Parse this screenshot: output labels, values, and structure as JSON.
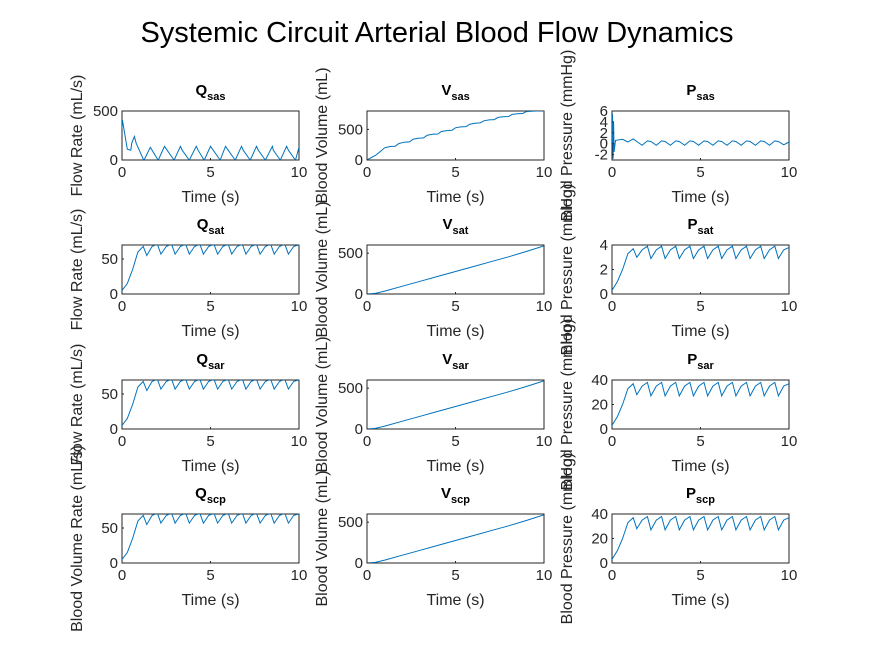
{
  "figure": {
    "title": "Systemic Circuit Arterial Blood Flow Dynamics",
    "line_color": "#0072BD",
    "background": "#ffffff"
  },
  "chart_data": [
    {
      "id": "Q_sas",
      "type": "line",
      "title_main": "Q",
      "title_sub": "sas",
      "xlabel": "Time (s)",
      "ylabel": "Flow Rate (mL/s)",
      "xlim": [
        0,
        10
      ],
      "ylim": [
        0,
        500
      ],
      "xticks": [
        0,
        5,
        10
      ],
      "yticks": [
        0,
        500
      ],
      "grid": false,
      "series": [
        {
          "x": [
            0,
            0.02,
            0.3,
            0.5,
            0.55,
            0.7,
            0.8,
            1.2,
            1.25,
            1.6,
            1.7,
            2.0,
            2.05,
            2.4,
            2.55,
            2.9,
            2.95,
            3.3,
            3.4,
            3.75,
            3.8,
            4.2,
            4.3,
            4.6,
            4.65,
            5.0,
            5.15,
            5.5,
            5.55,
            5.85,
            6.0,
            6.35,
            6.4,
            6.75,
            6.85,
            7.2,
            7.25,
            7.6,
            7.7,
            8.05,
            8.1,
            8.5,
            8.55,
            8.9,
            8.95,
            9.3,
            9.4,
            9.75,
            9.8,
            10
          ],
          "y": [
            320,
            410,
            110,
            100,
            170,
            240,
            170,
            10,
            0,
            130,
            100,
            10,
            0,
            140,
            100,
            10,
            0,
            140,
            100,
            10,
            0,
            140,
            100,
            10,
            0,
            140,
            100,
            10,
            0,
            140,
            100,
            10,
            0,
            140,
            100,
            10,
            0,
            140,
            100,
            10,
            0,
            140,
            100,
            10,
            0,
            140,
            100,
            10,
            0,
            130
          ]
        }
      ]
    },
    {
      "id": "V_sas",
      "type": "line",
      "title_main": "V",
      "title_sub": "sas",
      "xlabel": "Time (s)",
      "ylabel": "Blood Volume (mL)",
      "xlim": [
        0,
        10
      ],
      "ylim": [
        0,
        800
      ],
      "xticks": [
        0,
        5,
        10
      ],
      "yticks": [
        0,
        500
      ],
      "grid": false,
      "series": [
        {
          "x": [
            0,
            0.5,
            0.8,
            1.0,
            1.3,
            1.6,
            1.8,
            2.1,
            2.4,
            2.6,
            2.9,
            3.2,
            3.4,
            3.7,
            4.0,
            4.2,
            4.5,
            4.8,
            5.0,
            5.3,
            5.6,
            5.8,
            6.1,
            6.4,
            6.6,
            6.9,
            7.2,
            7.4,
            7.7,
            8.0,
            8.2,
            8.5,
            8.8,
            9.0,
            9.3,
            9.6,
            9.8,
            10
          ],
          "y": [
            0,
            80,
            150,
            200,
            220,
            225,
            270,
            290,
            295,
            340,
            355,
            360,
            405,
            420,
            425,
            465,
            480,
            485,
            525,
            540,
            545,
            585,
            600,
            605,
            640,
            655,
            660,
            695,
            705,
            710,
            745,
            755,
            760,
            790,
            795,
            800,
            805,
            800
          ]
        }
      ]
    },
    {
      "id": "P_sas",
      "type": "line",
      "title_main": "P",
      "title_sub": "sas",
      "xlabel": "Time (s)",
      "ylabel": "Blood Pressure (mmHg)",
      "xlim": [
        0,
        10
      ],
      "ylim": [
        -3,
        6
      ],
      "xticks": [
        0,
        5,
        10
      ],
      "yticks": [
        -2,
        0,
        2,
        4,
        6
      ],
      "grid": false,
      "series": [
        {
          "x": [
            0,
            0.03,
            0.06,
            0.09,
            0.12,
            0.2,
            0.6,
            0.9,
            1.2,
            1.4,
            1.7,
            2.0,
            2.2,
            2.5,
            2.8,
            3.0,
            3.3,
            3.6,
            3.8,
            4.1,
            4.4,
            4.6,
            4.9,
            5.2,
            5.4,
            5.7,
            6.0,
            6.2,
            6.5,
            6.8,
            7.0,
            7.3,
            7.6,
            7.8,
            8.1,
            8.4,
            8.6,
            8.9,
            9.2,
            9.4,
            9.7,
            10
          ],
          "y": [
            0,
            5.5,
            -2.8,
            4.0,
            -1.5,
            0.6,
            0.8,
            0.3,
            0.9,
            0.4,
            -0.3,
            0.5,
            0.4,
            -0.3,
            0.5,
            0.4,
            -0.3,
            0.5,
            0.4,
            -0.3,
            0.5,
            0.4,
            -0.3,
            0.5,
            0.4,
            -0.3,
            0.5,
            0.4,
            -0.3,
            0.5,
            0.4,
            -0.3,
            0.5,
            0.4,
            -0.3,
            0.5,
            0.4,
            -0.3,
            0.5,
            0.4,
            -0.2,
            0.3
          ]
        }
      ]
    },
    {
      "id": "Q_sat",
      "type": "line",
      "title_main": "Q",
      "title_sub": "sat",
      "xlabel": "Time (s)",
      "ylabel": "Flow Rate (mL/s)",
      "xlim": [
        0,
        10
      ],
      "ylim": [
        0,
        70
      ],
      "xticks": [
        0,
        5,
        10
      ],
      "yticks": [
        0,
        50
      ],
      "grid": false,
      "series": [
        {
          "x": [
            0,
            0.3,
            0.6,
            0.9,
            1.2,
            1.4,
            1.7,
            2.0,
            2.2,
            2.5,
            2.8,
            3.0,
            3.3,
            3.6,
            3.8,
            4.1,
            4.4,
            4.6,
            4.9,
            5.2,
            5.4,
            5.7,
            6.0,
            6.2,
            6.5,
            6.8,
            7.0,
            7.3,
            7.6,
            7.8,
            8.1,
            8.4,
            8.6,
            8.9,
            9.2,
            9.4,
            9.7,
            10
          ],
          "y": [
            5,
            15,
            35,
            60,
            68,
            55,
            68,
            71,
            57,
            68,
            71,
            57,
            68,
            71,
            57,
            68,
            71,
            57,
            68,
            71,
            57,
            68,
            71,
            57,
            68,
            71,
            57,
            68,
            71,
            57,
            68,
            71,
            57,
            68,
            71,
            57,
            68,
            70
          ]
        }
      ]
    },
    {
      "id": "V_sat",
      "type": "line",
      "title_main": "V",
      "title_sub": "sat",
      "xlabel": "Time (s)",
      "ylabel": "Blood Volume (mL)",
      "xlim": [
        0,
        10
      ],
      "ylim": [
        0,
        600
      ],
      "xticks": [
        0,
        5,
        10
      ],
      "yticks": [
        0,
        500
      ],
      "grid": false,
      "series": [
        {
          "x": [
            0,
            0.5,
            1,
            2,
            3,
            4,
            5,
            6,
            7,
            8,
            9,
            10
          ],
          "y": [
            0,
            10,
            35,
            95,
            155,
            215,
            275,
            335,
            395,
            455,
            520,
            590
          ]
        }
      ]
    },
    {
      "id": "P_sat",
      "type": "line",
      "title_main": "P",
      "title_sub": "sat",
      "xlabel": "Time (s)",
      "ylabel": "Blood Pressure (mmHg)",
      "xlim": [
        0,
        10
      ],
      "ylim": [
        0,
        4
      ],
      "xticks": [
        0,
        5,
        10
      ],
      "yticks": [
        0,
        2,
        4
      ],
      "grid": false,
      "series": [
        {
          "x": [
            0,
            0.3,
            0.6,
            0.9,
            1.2,
            1.4,
            1.7,
            2.0,
            2.2,
            2.5,
            2.8,
            3.0,
            3.3,
            3.6,
            3.8,
            4.1,
            4.4,
            4.6,
            4.9,
            5.2,
            5.4,
            5.7,
            6.0,
            6.2,
            6.5,
            6.8,
            7.0,
            7.3,
            7.6,
            7.8,
            8.1,
            8.4,
            8.6,
            8.9,
            9.2,
            9.4,
            9.7,
            10
          ],
          "y": [
            0.3,
            1.0,
            2.0,
            3.3,
            3.7,
            3.0,
            3.6,
            3.9,
            2.9,
            3.6,
            3.9,
            2.9,
            3.6,
            3.9,
            2.9,
            3.6,
            3.9,
            2.9,
            3.6,
            3.9,
            2.9,
            3.6,
            3.9,
            2.9,
            3.6,
            3.9,
            2.9,
            3.6,
            3.9,
            2.9,
            3.6,
            3.9,
            2.9,
            3.6,
            3.9,
            2.9,
            3.6,
            3.8
          ]
        }
      ]
    },
    {
      "id": "Q_sar",
      "type": "line",
      "title_main": "Q",
      "title_sub": "sar",
      "xlabel": "Time (s)",
      "ylabel": "Flow Rate (mL/s)",
      "xlim": [
        0,
        10
      ],
      "ylim": [
        0,
        70
      ],
      "xticks": [
        0,
        5,
        10
      ],
      "yticks": [
        0,
        50
      ],
      "grid": false,
      "series": [
        {
          "x": [
            0,
            0.3,
            0.6,
            0.9,
            1.2,
            1.4,
            1.7,
            2.0,
            2.2,
            2.5,
            2.8,
            3.0,
            3.3,
            3.6,
            3.8,
            4.1,
            4.4,
            4.6,
            4.9,
            5.2,
            5.4,
            5.7,
            6.0,
            6.2,
            6.5,
            6.8,
            7.0,
            7.3,
            7.6,
            7.8,
            8.1,
            8.4,
            8.6,
            8.9,
            9.2,
            9.4,
            9.7,
            10
          ],
          "y": [
            5,
            15,
            35,
            60,
            68,
            55,
            68,
            71,
            57,
            68,
            71,
            57,
            68,
            71,
            57,
            68,
            71,
            57,
            68,
            71,
            57,
            68,
            71,
            57,
            68,
            71,
            57,
            68,
            71,
            57,
            68,
            71,
            57,
            68,
            71,
            57,
            68,
            70
          ]
        }
      ]
    },
    {
      "id": "V_sar",
      "type": "line",
      "title_main": "V",
      "title_sub": "sar",
      "xlabel": "Time (s)",
      "ylabel": "Blood Volume (mL)",
      "xlim": [
        0,
        10
      ],
      "ylim": [
        0,
        600
      ],
      "xticks": [
        0,
        5,
        10
      ],
      "yticks": [
        0,
        500
      ],
      "grid": false,
      "series": [
        {
          "x": [
            0,
            0.5,
            1,
            2,
            3,
            4,
            5,
            6,
            7,
            8,
            9,
            10
          ],
          "y": [
            0,
            10,
            35,
            95,
            155,
            215,
            275,
            335,
            395,
            455,
            520,
            590
          ]
        }
      ]
    },
    {
      "id": "P_sar",
      "type": "line",
      "title_main": "P",
      "title_sub": "sar",
      "xlabel": "Time (s)",
      "ylabel": "Blood Pressure (mmHg)",
      "xlim": [
        0,
        10
      ],
      "ylim": [
        0,
        40
      ],
      "xticks": [
        0,
        5,
        10
      ],
      "yticks": [
        0,
        20,
        40
      ],
      "grid": false,
      "series": [
        {
          "x": [
            0,
            0.3,
            0.6,
            0.9,
            1.2,
            1.4,
            1.7,
            2.0,
            2.2,
            2.5,
            2.8,
            3.0,
            3.3,
            3.6,
            3.8,
            4.1,
            4.4,
            4.6,
            4.9,
            5.2,
            5.4,
            5.7,
            6.0,
            6.2,
            6.5,
            6.8,
            7.0,
            7.3,
            7.6,
            7.8,
            8.1,
            8.4,
            8.6,
            8.9,
            9.2,
            9.4,
            9.7,
            10
          ],
          "y": [
            3,
            10,
            20,
            33,
            37,
            28,
            35,
            38,
            27,
            35,
            38,
            27,
            35,
            38,
            27,
            35,
            38,
            27,
            35,
            38,
            27,
            35,
            38,
            27,
            35,
            38,
            27,
            35,
            38,
            27,
            35,
            38,
            27,
            35,
            38,
            27,
            35,
            37
          ]
        }
      ]
    },
    {
      "id": "Q_scp",
      "type": "line",
      "title_main": "Q",
      "title_sub": "scp",
      "xlabel": "Time (s)",
      "ylabel": "Blood Volume Rate (mL/s)",
      "xlim": [
        0,
        10
      ],
      "ylim": [
        0,
        70
      ],
      "xticks": [
        0,
        5,
        10
      ],
      "yticks": [
        0,
        50
      ],
      "grid": false,
      "series": [
        {
          "x": [
            0,
            0.3,
            0.6,
            0.9,
            1.2,
            1.4,
            1.7,
            2.0,
            2.2,
            2.5,
            2.8,
            3.0,
            3.3,
            3.6,
            3.8,
            4.1,
            4.4,
            4.6,
            4.9,
            5.2,
            5.4,
            5.7,
            6.0,
            6.2,
            6.5,
            6.8,
            7.0,
            7.3,
            7.6,
            7.8,
            8.1,
            8.4,
            8.6,
            8.9,
            9.2,
            9.4,
            9.7,
            10
          ],
          "y": [
            5,
            15,
            35,
            60,
            68,
            55,
            68,
            71,
            57,
            68,
            71,
            57,
            68,
            71,
            57,
            68,
            71,
            57,
            68,
            71,
            57,
            68,
            71,
            57,
            68,
            71,
            57,
            68,
            71,
            57,
            68,
            71,
            57,
            68,
            71,
            57,
            68,
            70
          ]
        }
      ]
    },
    {
      "id": "V_scp",
      "type": "line",
      "title_main": "V",
      "title_sub": "scp",
      "xlabel": "Time (s)",
      "ylabel": "Blood Volume (mL)",
      "xlim": [
        0,
        10
      ],
      "ylim": [
        0,
        600
      ],
      "xticks": [
        0,
        5,
        10
      ],
      "yticks": [
        0,
        500
      ],
      "grid": false,
      "series": [
        {
          "x": [
            0,
            0.5,
            1,
            2,
            3,
            4,
            5,
            6,
            7,
            8,
            9,
            10
          ],
          "y": [
            0,
            10,
            35,
            95,
            155,
            215,
            275,
            335,
            395,
            455,
            520,
            590
          ]
        }
      ]
    },
    {
      "id": "P_scp",
      "type": "line",
      "title_main": "P",
      "title_sub": "scp",
      "xlabel": "Time (s)",
      "ylabel": "Blood Pressure (mmHg)",
      "xlim": [
        0,
        10
      ],
      "ylim": [
        0,
        40
      ],
      "xticks": [
        0,
        5,
        10
      ],
      "yticks": [
        0,
        20,
        40
      ],
      "grid": false,
      "series": [
        {
          "x": [
            0,
            0.3,
            0.6,
            0.9,
            1.2,
            1.4,
            1.7,
            2.0,
            2.2,
            2.5,
            2.8,
            3.0,
            3.3,
            3.6,
            3.8,
            4.1,
            4.4,
            4.6,
            4.9,
            5.2,
            5.4,
            5.7,
            6.0,
            6.2,
            6.5,
            6.8,
            7.0,
            7.3,
            7.6,
            7.8,
            8.1,
            8.4,
            8.6,
            8.9,
            9.2,
            9.4,
            9.7,
            10
          ],
          "y": [
            3,
            10,
            20,
            33,
            37,
            28,
            35,
            38,
            27,
            35,
            38,
            27,
            35,
            38,
            27,
            35,
            38,
            27,
            35,
            38,
            27,
            35,
            38,
            27,
            35,
            38,
            27,
            35,
            38,
            27,
            35,
            38,
            27,
            35,
            38,
            27,
            35,
            37
          ]
        }
      ]
    }
  ]
}
